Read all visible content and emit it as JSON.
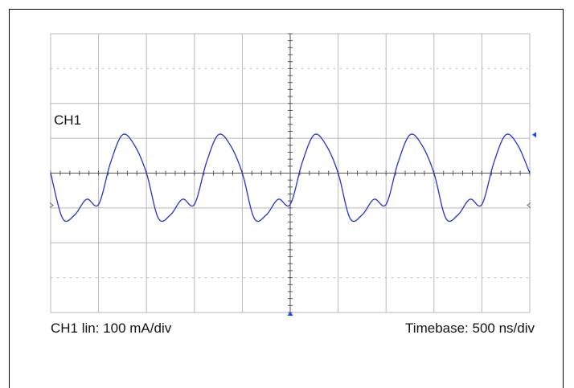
{
  "chart_data": {
    "type": "line",
    "channel_label": "CH1",
    "divisions": {
      "x": 10,
      "y": 8
    },
    "trace_color": "#2233cc",
    "grid_color": "#b8b8b8",
    "trigger_marker_color": "#1a44ff",
    "series": [
      {
        "name": "CH1",
        "unit_x": "div",
        "unit_y": "div",
        "x_start": 0,
        "x_step": 0.25,
        "y": [
          0.0,
          -1.3,
          -1.2,
          -0.75,
          -0.9,
          0.3,
          1.1,
          0.8,
          0.0,
          -1.3,
          -1.2,
          -0.75,
          -0.9,
          0.3,
          1.1,
          0.8,
          0.0,
          -1.3,
          -1.2,
          -0.75,
          -0.9,
          0.3,
          1.1,
          0.8,
          0.0,
          -1.3,
          -1.2,
          -0.75,
          -0.9,
          0.3,
          1.1,
          0.8,
          0.0,
          -1.3,
          -1.2,
          -0.75,
          -0.9,
          0.3,
          1.1,
          0.8,
          0.0
        ]
      }
    ],
    "xlim": [
      0,
      10
    ],
    "ylim": [
      -4,
      4
    ]
  },
  "footer": {
    "scale": "CH1 lin: 100 mA/div",
    "timebase": "Timebase: 500 ns/div"
  }
}
